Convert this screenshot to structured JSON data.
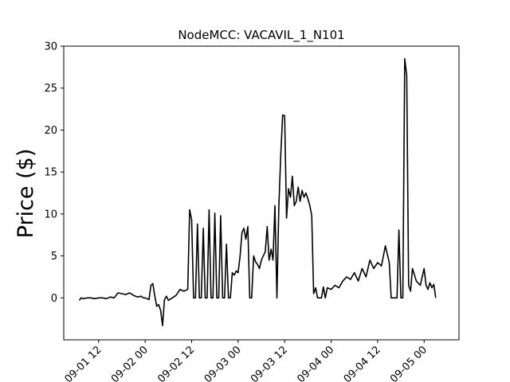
{
  "chart_data": {
    "type": "line",
    "title": "NodeMCC: VACAVIL_1_N101",
    "xlabel": "",
    "ylabel": "Price ($)",
    "xlim": [
      "2022-09-01 03:00",
      "2022-09-05 09:00"
    ],
    "ylim": [
      -5,
      30
    ],
    "grid": false,
    "x_ticks": [
      {
        "at": "2022-09-01 12:00",
        "label": "09-01 12"
      },
      {
        "at": "2022-09-02 00:00",
        "label": "09-02 00"
      },
      {
        "at": "2022-09-02 12:00",
        "label": "09-02 12"
      },
      {
        "at": "2022-09-03 00:00",
        "label": "09-03 00"
      },
      {
        "at": "2022-09-03 12:00",
        "label": "09-03 12"
      },
      {
        "at": "2022-09-04 00:00",
        "label": "09-04 00"
      },
      {
        "at": "2022-09-04 12:00",
        "label": "09-04 12"
      },
      {
        "at": "2022-09-05 00:00",
        "label": "09-05 00"
      }
    ],
    "y_ticks": [
      0,
      5,
      10,
      15,
      20,
      25,
      30
    ],
    "series": [
      {
        "color": "#000000",
        "points": [
          [
            "2022-09-01 07:00",
            -0.3
          ],
          [
            "2022-09-01 07:30",
            0.0
          ],
          [
            "2022-09-01 08:00",
            -0.1
          ],
          [
            "2022-09-01 09:00",
            0.0
          ],
          [
            "2022-09-01 10:00",
            0.0
          ],
          [
            "2022-09-01 11:00",
            -0.1
          ],
          [
            "2022-09-01 12:00",
            0.0
          ],
          [
            "2022-09-01 13:00",
            0.0
          ],
          [
            "2022-09-01 14:00",
            -0.1
          ],
          [
            "2022-09-01 15:00",
            0.1
          ],
          [
            "2022-09-01 16:00",
            0.0
          ],
          [
            "2022-09-01 17:00",
            0.6
          ],
          [
            "2022-09-01 18:00",
            0.5
          ],
          [
            "2022-09-01 19:00",
            0.4
          ],
          [
            "2022-09-01 20:00",
            0.6
          ],
          [
            "2022-09-01 21:00",
            0.3
          ],
          [
            "2022-09-01 22:00",
            0.1
          ],
          [
            "2022-09-01 23:00",
            0.2
          ],
          [
            "2022-09-01 23:30",
            0.0
          ],
          [
            "2022-09-02 00:00",
            0.0
          ],
          [
            "2022-09-02 01:00",
            -0.2
          ],
          [
            "2022-09-02 01:30",
            1.5
          ],
          [
            "2022-09-02 02:00",
            1.7
          ],
          [
            "2022-09-02 02:30",
            0.2
          ],
          [
            "2022-09-02 03:00",
            -1.0
          ],
          [
            "2022-09-02 03:30",
            -0.8
          ],
          [
            "2022-09-02 04:00",
            -1.5
          ],
          [
            "2022-09-02 04:30",
            -3.3
          ],
          [
            "2022-09-02 05:00",
            -0.2
          ],
          [
            "2022-09-02 05:30",
            0.2
          ],
          [
            "2022-09-02 06:00",
            -0.3
          ],
          [
            "2022-09-02 07:00",
            0.0
          ],
          [
            "2022-09-02 08:00",
            0.3
          ],
          [
            "2022-09-02 09:00",
            1.0
          ],
          [
            "2022-09-02 10:00",
            0.8
          ],
          [
            "2022-09-02 11:00",
            1.0
          ],
          [
            "2022-09-02 11:30",
            10.5
          ],
          [
            "2022-09-02 12:00",
            9.3
          ],
          [
            "2022-09-02 12:30",
            0.0
          ],
          [
            "2022-09-02 13:00",
            0.0
          ],
          [
            "2022-09-02 13:30",
            8.8
          ],
          [
            "2022-09-02 14:00",
            0.0
          ],
          [
            "2022-09-02 14:30",
            0.0
          ],
          [
            "2022-09-02 15:00",
            8.3
          ],
          [
            "2022-09-02 15:30",
            0.0
          ],
          [
            "2022-09-02 16:00",
            0.0
          ],
          [
            "2022-09-02 16:30",
            10.5
          ],
          [
            "2022-09-02 17:00",
            0.0
          ],
          [
            "2022-09-02 17:30",
            0.0
          ],
          [
            "2022-09-02 18:00",
            10.1
          ],
          [
            "2022-09-02 18:30",
            0.0
          ],
          [
            "2022-09-02 19:00",
            0.0
          ],
          [
            "2022-09-02 19:30",
            9.8
          ],
          [
            "2022-09-02 20:00",
            0.0
          ],
          [
            "2022-09-02 20:30",
            0.0
          ],
          [
            "2022-09-02 21:00",
            6.4
          ],
          [
            "2022-09-02 21:30",
            0.0
          ],
          [
            "2022-09-02 22:00",
            0.0
          ],
          [
            "2022-09-02 22:30",
            3.0
          ],
          [
            "2022-09-02 23:00",
            2.7
          ],
          [
            "2022-09-02 23:30",
            3.2
          ],
          [
            "2022-09-03 00:00",
            3.0
          ],
          [
            "2022-09-03 00:30",
            5.0
          ],
          [
            "2022-09-03 01:00",
            7.8
          ],
          [
            "2022-09-03 01:30",
            8.3
          ],
          [
            "2022-09-03 02:00",
            7.0
          ],
          [
            "2022-09-03 02:30",
            8.5
          ],
          [
            "2022-09-03 03:00",
            0.0
          ],
          [
            "2022-09-03 03:30",
            0.0
          ],
          [
            "2022-09-03 04:00",
            5.0
          ],
          [
            "2022-09-03 04:30",
            4.3
          ],
          [
            "2022-09-03 05:00",
            4.0
          ],
          [
            "2022-09-03 05:30",
            3.5
          ],
          [
            "2022-09-03 06:00",
            4.5
          ],
          [
            "2022-09-03 06:30",
            5.0
          ],
          [
            "2022-09-03 07:00",
            5.5
          ],
          [
            "2022-09-03 07:30",
            8.5
          ],
          [
            "2022-09-03 08:00",
            4.5
          ],
          [
            "2022-09-03 08:30",
            5.8
          ],
          [
            "2022-09-03 09:00",
            4.5
          ],
          [
            "2022-09-03 09:30",
            11.0
          ],
          [
            "2022-09-03 10:00",
            0.0
          ],
          [
            "2022-09-03 10:30",
            10.8
          ],
          [
            "2022-09-03 11:00",
            17.0
          ],
          [
            "2022-09-03 11:30",
            21.8
          ],
          [
            "2022-09-03 12:00",
            21.7
          ],
          [
            "2022-09-03 12:30",
            9.5
          ],
          [
            "2022-09-03 13:00",
            13.0
          ],
          [
            "2022-09-03 13:30",
            12.0
          ],
          [
            "2022-09-03 14:00",
            14.5
          ],
          [
            "2022-09-03 14:30",
            11.0
          ],
          [
            "2022-09-03 15:00",
            11.5
          ],
          [
            "2022-09-03 15:30",
            13.2
          ],
          [
            "2022-09-03 16:00",
            11.5
          ],
          [
            "2022-09-03 16:30",
            12.8
          ],
          [
            "2022-09-03 17:00",
            12.0
          ],
          [
            "2022-09-03 17:30",
            12.5
          ],
          [
            "2022-09-03 18:00",
            11.8
          ],
          [
            "2022-09-03 18:30",
            11.0
          ],
          [
            "2022-09-03 19:00",
            9.8
          ],
          [
            "2022-09-03 19:30",
            0.5
          ],
          [
            "2022-09-03 20:00",
            1.2
          ],
          [
            "2022-09-03 20:30",
            0.0
          ],
          [
            "2022-09-03 21:00",
            0.0
          ],
          [
            "2022-09-03 21:30",
            0.0
          ],
          [
            "2022-09-03 22:00",
            1.3
          ],
          [
            "2022-09-03 22:30",
            0.0
          ],
          [
            "2022-09-03 23:00",
            1.2
          ],
          [
            "2022-09-04 00:00",
            1.0
          ],
          [
            "2022-09-04 01:00",
            1.5
          ],
          [
            "2022-09-04 02:00",
            1.2
          ],
          [
            "2022-09-04 03:00",
            2.0
          ],
          [
            "2022-09-04 04:00",
            2.5
          ],
          [
            "2022-09-04 05:00",
            2.2
          ],
          [
            "2022-09-04 06:00",
            3.0
          ],
          [
            "2022-09-04 07:00",
            2.0
          ],
          [
            "2022-09-04 08:00",
            3.5
          ],
          [
            "2022-09-04 09:00",
            2.5
          ],
          [
            "2022-09-04 10:00",
            4.5
          ],
          [
            "2022-09-04 11:00",
            3.5
          ],
          [
            "2022-09-04 12:00",
            4.2
          ],
          [
            "2022-09-04 13:00",
            3.8
          ],
          [
            "2022-09-04 14:00",
            6.2
          ],
          [
            "2022-09-04 15:00",
            4.2
          ],
          [
            "2022-09-04 15:30",
            0.0
          ],
          [
            "2022-09-04 16:00",
            0.0
          ],
          [
            "2022-09-04 17:00",
            0.0
          ],
          [
            "2022-09-04 17:30",
            8.1
          ],
          [
            "2022-09-04 18:00",
            0.0
          ],
          [
            "2022-09-04 18:30",
            0.0
          ],
          [
            "2022-09-04 19:00",
            28.5
          ],
          [
            "2022-09-04 19:30",
            26.5
          ],
          [
            "2022-09-04 20:00",
            1.5
          ],
          [
            "2022-09-04 20:30",
            0.8
          ],
          [
            "2022-09-04 21:00",
            3.5
          ],
          [
            "2022-09-04 22:00",
            2.0
          ],
          [
            "2022-09-04 23:00",
            1.5
          ],
          [
            "2022-09-05 00:00",
            3.5
          ],
          [
            "2022-09-05 00:30",
            1.5
          ],
          [
            "2022-09-05 01:00",
            1.0
          ],
          [
            "2022-09-05 01:30",
            1.8
          ],
          [
            "2022-09-05 02:00",
            1.2
          ],
          [
            "2022-09-05 02:30",
            1.6
          ],
          [
            "2022-09-05 03:00",
            0.0
          ]
        ]
      }
    ]
  }
}
